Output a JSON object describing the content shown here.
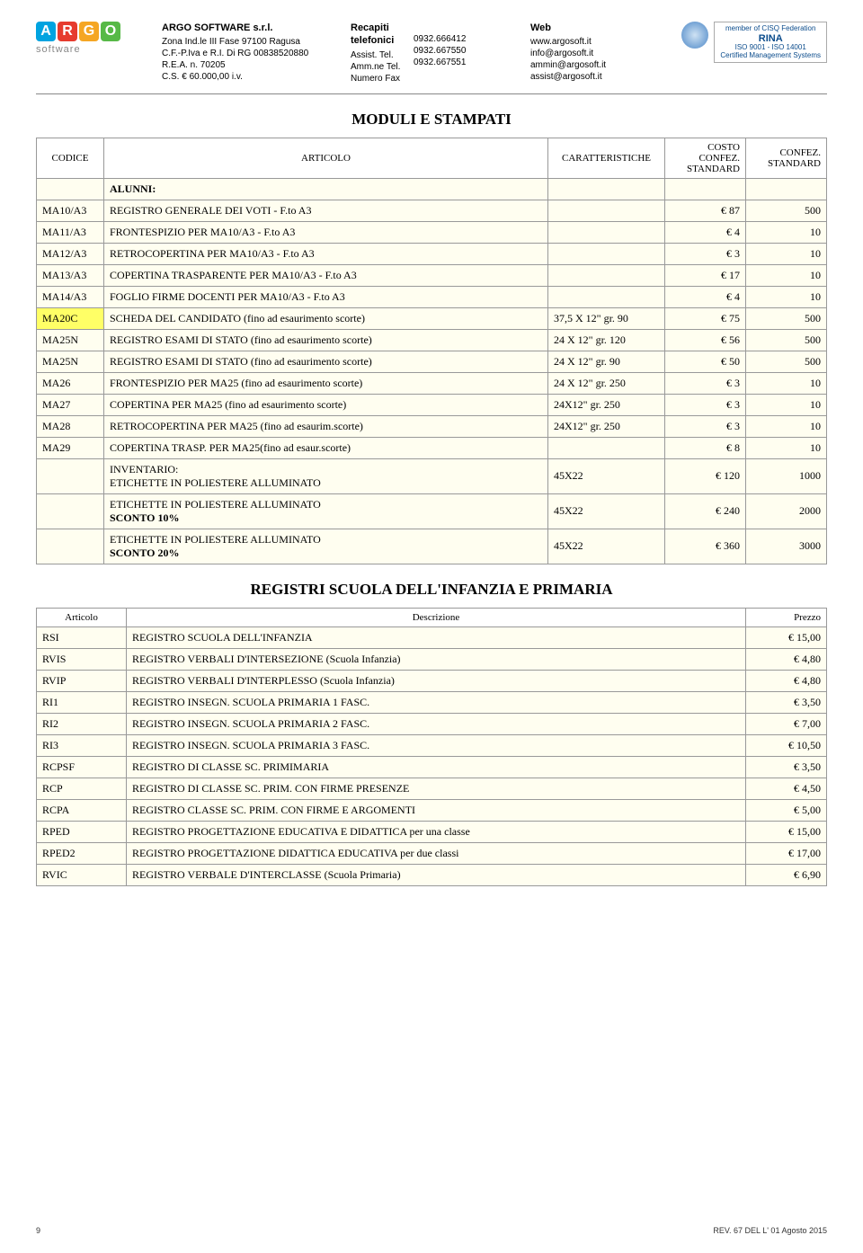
{
  "header": {
    "company": "ARGO SOFTWARE s.r.l.",
    "logo": {
      "letters": [
        "A",
        "R",
        "G",
        "O"
      ],
      "colors": [
        "#00a3e0",
        "#e63b2e",
        "#f5a623",
        "#57b947"
      ],
      "sub": "software"
    },
    "address": [
      "Zona Ind.le III Fase 97100 Ragusa",
      "C.F.-P.Iva e R.I. Di RG 00838520880",
      "R.E.A. n. 70205",
      "C.S. € 60.000,00 i.v."
    ],
    "tel_title": "Recapiti telefonici",
    "tel_labels": [
      "Assist. Tel.",
      "Amm.ne Tel.",
      "Numero Fax"
    ],
    "tel_numbers": [
      "0932.666412",
      "0932.667550",
      "0932.667551"
    ],
    "web_title": "Web",
    "web_links": [
      "www.argosoft.it",
      "info@argosoft.it",
      "ammin@argosoft.it",
      "assist@argosoft.it"
    ],
    "cert": {
      "top": "member of CISQ Federation",
      "name": "RINA",
      "iso": "ISO 9001 - ISO 14001",
      "sub": "Certified Management Systems"
    }
  },
  "section1": {
    "title": "MODULI E STAMPATI",
    "columns": [
      "CODICE",
      "ARTICOLO",
      "CARATTERISTICHE",
      "COSTO CONFEZ. STANDARD",
      "CONFEZ. STANDARD"
    ],
    "alunni_label": "ALUNNI:",
    "rows": [
      {
        "c": "MA10/A3",
        "a": "REGISTRO GENERALE DEI VOTI - F.to  A3",
        "car": "",
        "p": "€ 87",
        "q": "500"
      },
      {
        "c": "MA11/A3",
        "a": "FRONTESPIZIO PER MA10/A3 - F.to  A3",
        "car": "",
        "p": "€ 4",
        "q": "10"
      },
      {
        "c": "MA12/A3",
        "a": "RETROCOPERTINA PER MA10/A3 - F.to  A3",
        "car": "",
        "p": "€ 3",
        "q": "10"
      },
      {
        "c": "MA13/A3",
        "a": "COPERTINA TRASPARENTE PER MA10/A3 - F.to  A3",
        "car": "",
        "p": "€ 17",
        "q": "10"
      },
      {
        "c": "MA14/A3",
        "a": "FOGLIO FIRME DOCENTI PER MA10/A3 - F.to  A3",
        "car": "",
        "p": "€ 4",
        "q": "10"
      },
      {
        "c": "MA20C",
        "a": "SCHEDA DEL CANDIDATO (fino ad esaurimento scorte)",
        "car": "37,5 X 12\" gr. 90",
        "p": "€ 75",
        "q": "500",
        "hl": true
      },
      {
        "c": "MA25N",
        "a": "REGISTRO ESAMI DI STATO (fino ad esaurimento scorte)",
        "car": "24 X 12\" gr. 120",
        "p": "€ 56",
        "q": "500"
      },
      {
        "c": "MA25N",
        "a": "REGISTRO ESAMI DI STATO (fino ad esaurimento scorte)",
        "car": "24 X 12\" gr. 90",
        "p": "€ 50",
        "q": "500"
      },
      {
        "c": "MA26",
        "a": "FRONTESPIZIO PER MA25 (fino ad esaurimento scorte)",
        "car": "24 X 12\" gr. 250",
        "p": "€ 3",
        "q": "10"
      },
      {
        "c": "MA27",
        "a": "COPERTINA PER MA25 (fino ad esaurimento scorte)",
        "car": "24X12\" gr. 250",
        "p": "€ 3",
        "q": "10"
      },
      {
        "c": "MA28",
        "a": "RETROCOPERTINA PER MA25 (fino ad esaurim.scorte)",
        "car": "24X12\" gr. 250",
        "p": "€ 3",
        "q": "10"
      },
      {
        "c": "MA29",
        "a": "COPERTINA TRASP. PER MA25(fino ad esaur.scorte)",
        "car": "",
        "p": "€ 8",
        "q": "10"
      },
      {
        "c": "",
        "a": "INVENTARIO:\nETICHETTE IN POLIESTERE ALLUMINATO",
        "car": "45X22",
        "p": "€ 120",
        "q": "1000"
      },
      {
        "c": "",
        "a": "ETICHETTE IN POLIESTERE ALLUMINATO\n<b>SCONTO 10%</b>",
        "car": "45X22",
        "p": "€ 240",
        "q": "2000"
      },
      {
        "c": "",
        "a": "ETICHETTE IN POLIESTERE ALLUMINATO\n<b>SCONTO 20%</b>",
        "car": "45X22",
        "p": "€ 360",
        "q": "3000"
      }
    ]
  },
  "section2": {
    "title": "REGISTRI SCUOLA DELL'INFANZIA E PRIMARIA",
    "columns": [
      "Articolo",
      "Descrizione",
      "Prezzo"
    ],
    "rows": [
      {
        "c": "RSI",
        "d": "REGISTRO SCUOLA DELL'INFANZIA",
        "p": "€ 15,00"
      },
      {
        "c": "RVIS",
        "d": "REGISTRO VERBALI D'INTERSEZIONE (Scuola Infanzia)",
        "p": "€ 4,80"
      },
      {
        "c": "RVIP",
        "d": "REGISTRO VERBALI D'INTERPLESSO (Scuola Infanzia)",
        "p": "€ 4,80"
      },
      {
        "c": "RI1",
        "d": "REGISTRO INSEGN. SCUOLA PRIMARIA 1 FASC.",
        "p": "€ 3,50"
      },
      {
        "c": "RI2",
        "d": "REGISTRO INSEGN. SCUOLA PRIMARIA 2 FASC.",
        "p": "€ 7,00"
      },
      {
        "c": "RI3",
        "d": "REGISTRO INSEGN. SCUOLA PRIMARIA 3 FASC.",
        "p": "€ 10,50"
      },
      {
        "c": "RCPSF",
        "d": "REGISTRO DI CLASSE SC. PRIMIMARIA",
        "p": "€ 3,50"
      },
      {
        "c": "RCP",
        "d": "REGISTRO DI CLASSE SC. PRIM. CON FIRME PRESENZE",
        "p": "€ 4,50"
      },
      {
        "c": "RCPA",
        "d": "REGISTRO CLASSE SC. PRIM. CON  FIRME E ARGOMENTI",
        "p": "€ 5,00"
      },
      {
        "c": "RPED",
        "d": "REGISTRO PROGETTAZIONE EDUCATIVA E DIDATTICA per una classe",
        "p": "€ 15,00"
      },
      {
        "c": "RPED2",
        "d": "REGISTRO PROGETTAZIONE DIDATTICA EDUCATIVA per due classi",
        "p": "€ 17,00"
      },
      {
        "c": "RVIC",
        "d": "REGISTRO VERBALE D'INTERCLASSE  (Scuola Primaria)",
        "p": "€ 6,90"
      }
    ]
  },
  "footer": {
    "page": "9",
    "rev": "REV. 67 DEL L' 01 Agosto 2015"
  }
}
